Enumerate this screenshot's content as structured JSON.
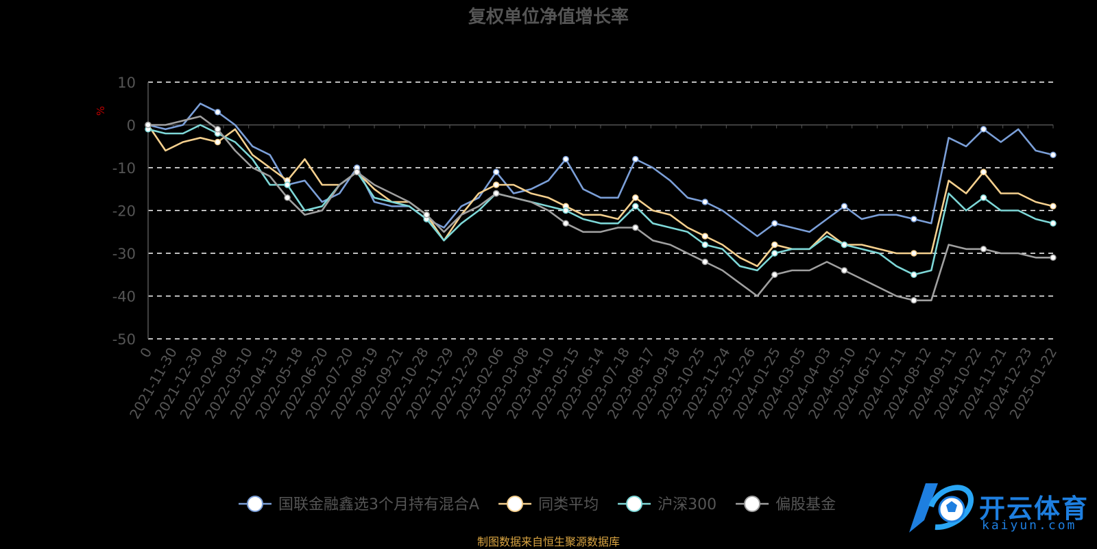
{
  "chart_data": {
    "type": "line",
    "title": "复权单位净值增长率",
    "ylabel": "%",
    "ylim": [
      -50,
      10
    ],
    "yticks": [
      "10",
      "0",
      "-10",
      "-20",
      "-30",
      "-40",
      "-50"
    ],
    "xticks": [
      "0",
      "2021-11-30",
      "2021-12-30",
      "2022-02-08",
      "2022-03-10",
      "2022-04-13",
      "2022-05-18",
      "2022-06-20",
      "2022-07-20",
      "2022-08-19",
      "2022-09-21",
      "2022-10-28",
      "2022-11-29",
      "2022-12-29",
      "2023-02-06",
      "2023-03-08",
      "2023-04-10",
      "2023-05-15",
      "2023-06-14",
      "2023-07-18",
      "2023-08-17",
      "2023-09-18",
      "2023-10-25",
      "2023-11-24",
      "2023-12-26",
      "2024-01-25",
      "2024-03-05",
      "2024-04-03",
      "2024-05-10",
      "2024-06-12",
      "2024-07-11",
      "2024-08-12",
      "2024-09-11",
      "2024-10-22",
      "2024-11-21",
      "2024-12-23",
      "2025-01-22"
    ],
    "grid": "dashed horizontal",
    "legend_position": "bottom",
    "series": [
      {
        "name": "国联金融鑫选3个月持有混合A",
        "color": "#7b9fd8",
        "values": [
          0,
          -1,
          0,
          5,
          3,
          0,
          -5,
          -7,
          -14,
          -13,
          -18,
          -16,
          -10,
          -18,
          -19,
          -19,
          -22,
          -24,
          -19,
          -17,
          -11,
          -16,
          -15,
          -13,
          -8,
          -15,
          -17,
          -17,
          -8,
          -10,
          -13,
          -17,
          -18,
          -20,
          -23,
          -26,
          -23,
          -24,
          -25,
          -22,
          -19,
          -22,
          -21,
          -21,
          -22,
          -23,
          -3,
          -5,
          -1,
          -4,
          -1,
          -6,
          -7
        ]
      },
      {
        "name": "同类平均",
        "color": "#f5d08e",
        "values": [
          0,
          -6,
          -4,
          -3,
          -4,
          -1,
          -7,
          -10,
          -13,
          -8,
          -14,
          -14,
          -11,
          -15,
          -18,
          -18,
          -21,
          -27,
          -21,
          -16,
          -14,
          -14,
          -16,
          -17,
          -19,
          -21,
          -21,
          -22,
          -17,
          -20,
          -21,
          -24,
          -26,
          -28,
          -31,
          -33,
          -28,
          -29,
          -29,
          -25,
          -28,
          -28,
          -29,
          -30,
          -30,
          -30,
          -13,
          -16,
          -11,
          -16,
          -16,
          -18,
          -19
        ]
      },
      {
        "name": "沪深300",
        "color": "#7ed8d8",
        "values": [
          -1,
          -2,
          -2,
          0,
          -2,
          -4,
          -8,
          -14,
          -14,
          -20,
          -19,
          -14,
          -11,
          -17,
          -18,
          -19,
          -22,
          -27,
          -23,
          -20,
          -16,
          -17,
          -18,
          -19,
          -20,
          -22,
          -23,
          -23,
          -19,
          -23,
          -24,
          -25,
          -28,
          -29,
          -33,
          -34,
          -30,
          -29,
          -29,
          -26,
          -28,
          -29,
          -30,
          -33,
          -35,
          -34,
          -16,
          -20,
          -17,
          -20,
          -20,
          -22,
          -23
        ]
      },
      {
        "name": "偏股基金",
        "color": "#a0a0a0",
        "values": [
          0,
          0,
          1,
          2,
          -1,
          -6,
          -10,
          -12,
          -17,
          -21,
          -20,
          -14,
          -11,
          -14,
          -16,
          -18,
          -21,
          -25,
          -21,
          -19,
          -16,
          -17,
          -18,
          -20,
          -23,
          -25,
          -25,
          -24,
          -24,
          -27,
          -28,
          -30,
          -32,
          -34,
          -37,
          -40,
          -35,
          -34,
          -34,
          -32,
          -34,
          -36,
          -38,
          -40,
          -41,
          -41,
          -28,
          -29,
          -29,
          -30,
          -30,
          -31,
          -31
        ]
      }
    ]
  },
  "source_note": "制图数据来自恒生聚源数据库",
  "watermark": {
    "brand": "开云体育",
    "domain": "kaiyun.com"
  }
}
